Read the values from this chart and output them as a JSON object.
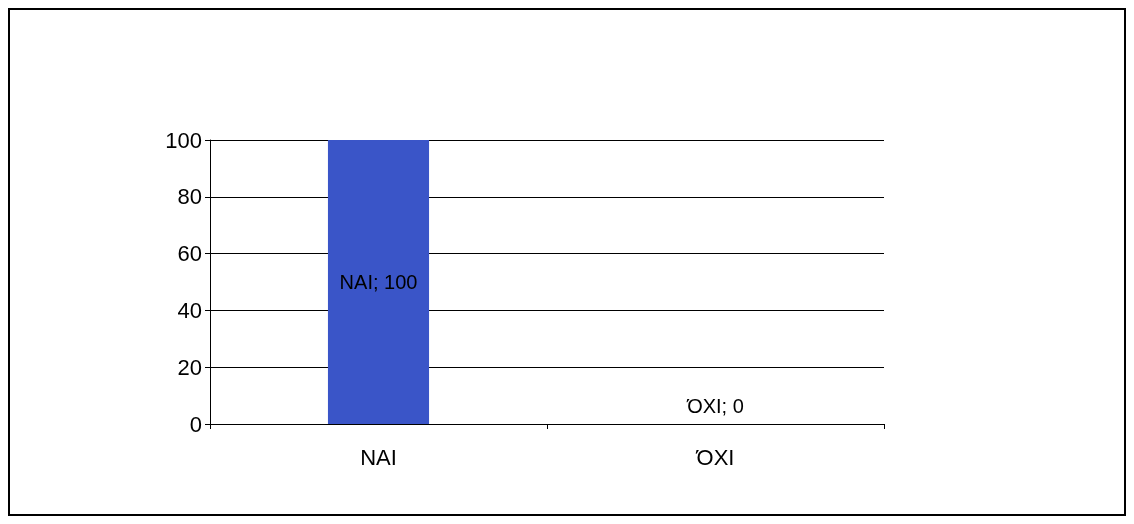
{
  "chart_data": {
    "type": "bar",
    "categories": [
      "ΝΑΙ",
      "ΌΧΙ"
    ],
    "values": [
      100,
      0
    ],
    "color": "#3a55c8",
    "value_labels": [
      "ΝΑΙ; 100",
      "ΌΧΙ; 0"
    ],
    "ylim": [
      0,
      100
    ],
    "yticks": [
      0,
      20,
      40,
      60,
      80,
      100
    ],
    "grid": "y"
  }
}
